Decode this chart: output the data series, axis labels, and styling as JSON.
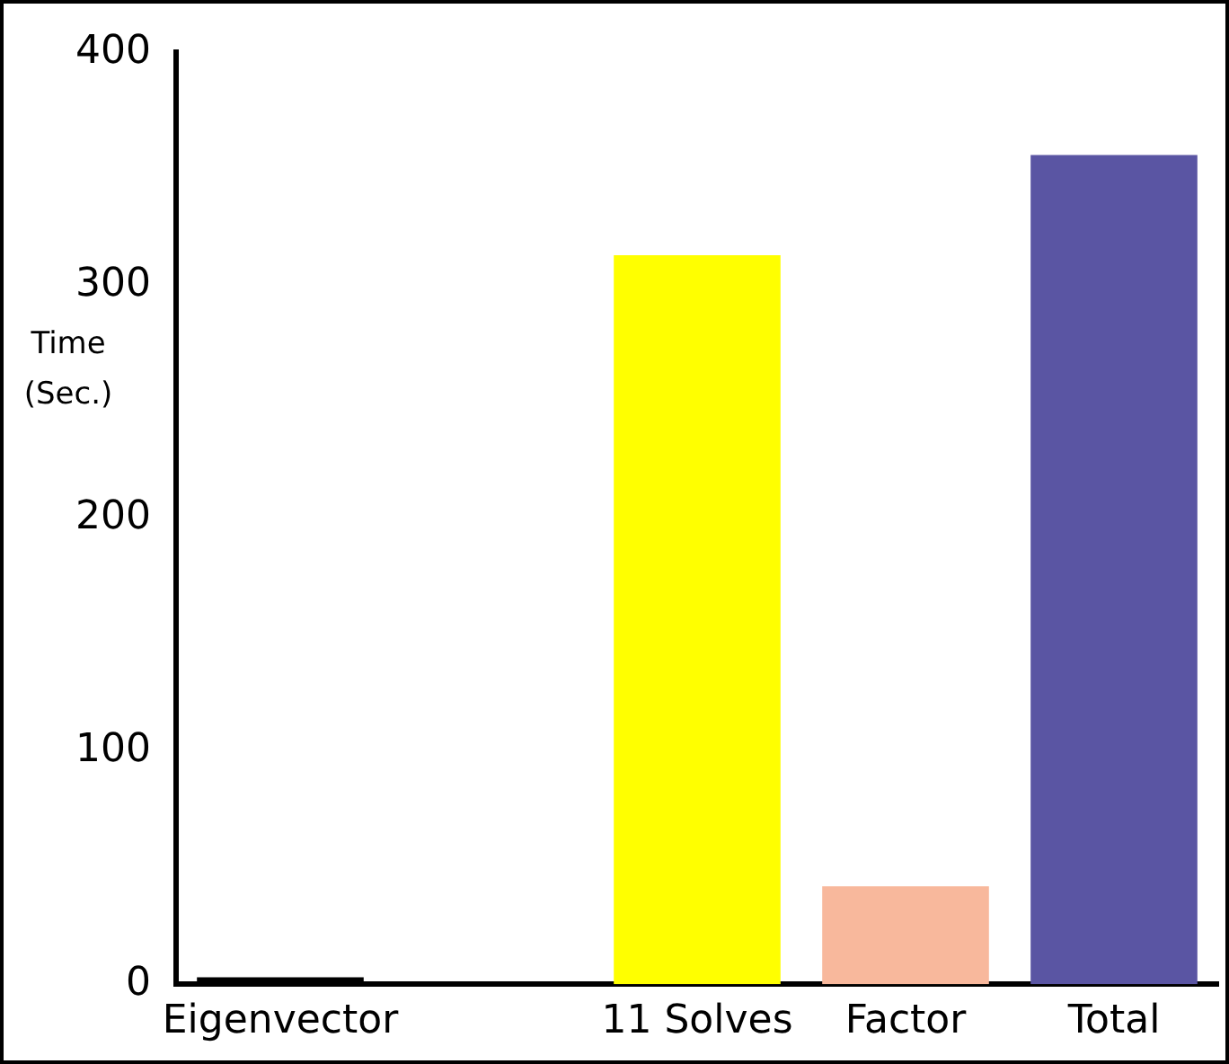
{
  "chart_data": {
    "type": "bar",
    "ylabel": "Time (Sec.)",
    "categories": [
      "Eigenvector",
      null,
      "11 Solves",
      "Factor",
      "Total"
    ],
    "values": [
      3,
      null,
      313,
      42,
      356
    ],
    "colors": [
      "#000000",
      null,
      "#ffff00",
      "#f8b89c",
      "#5a55a3"
    ],
    "ylim": [
      0,
      400
    ],
    "yticks": [
      0,
      100,
      200,
      300,
      400
    ],
    "grid": false,
    "legend": false
  }
}
